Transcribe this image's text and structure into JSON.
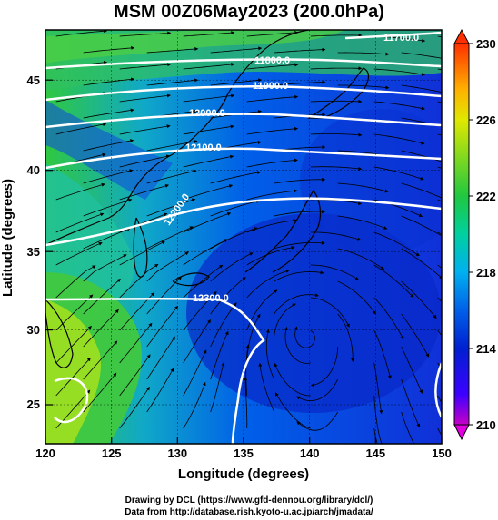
{
  "title": "MSM 00Z06May2023 (200.0hPa)",
  "x_axis": {
    "label": "Longitude (degrees)",
    "range": [
      120,
      150
    ],
    "ticks": [
      "120",
      "125",
      "130",
      "135",
      "140",
      "145",
      "150"
    ]
  },
  "y_axis": {
    "label": "Latitude  (degrees)",
    "range": [
      22.4,
      47.6
    ],
    "ticks": [
      "25",
      "30",
      "35",
      "40",
      "45"
    ]
  },
  "colorbar": {
    "range": [
      210,
      230
    ],
    "ticks": [
      "210",
      "214",
      "218",
      "222",
      "226",
      "230"
    ],
    "colors": [
      "#c800c8",
      "#3c00ff",
      "#0020d0",
      "#0050e0",
      "#0090f0",
      "#00c8f0",
      "#00d890",
      "#20c840",
      "#60d020",
      "#c8e800",
      "#ffe000",
      "#ff9000",
      "#ff3000"
    ]
  },
  "contours": [
    {
      "label": "11700.0",
      "level": 11700
    },
    {
      "label": "11800.0",
      "level": 11800
    },
    {
      "label": "11900.0",
      "level": 11900
    },
    {
      "label": "12000.0",
      "level": 12000
    },
    {
      "label": "12100.0",
      "level": 12100
    },
    {
      "label": "12200.0",
      "level": 12200
    },
    {
      "label": "12300.0",
      "level": 12300
    }
  ],
  "credits": {
    "line1": "Drawing by DCL (https://www.gfd-dennou.org/library/dcl/)",
    "line2": "Data from http://database.rish.kyoto-u.ac.jp/arch/jmadata/"
  }
}
